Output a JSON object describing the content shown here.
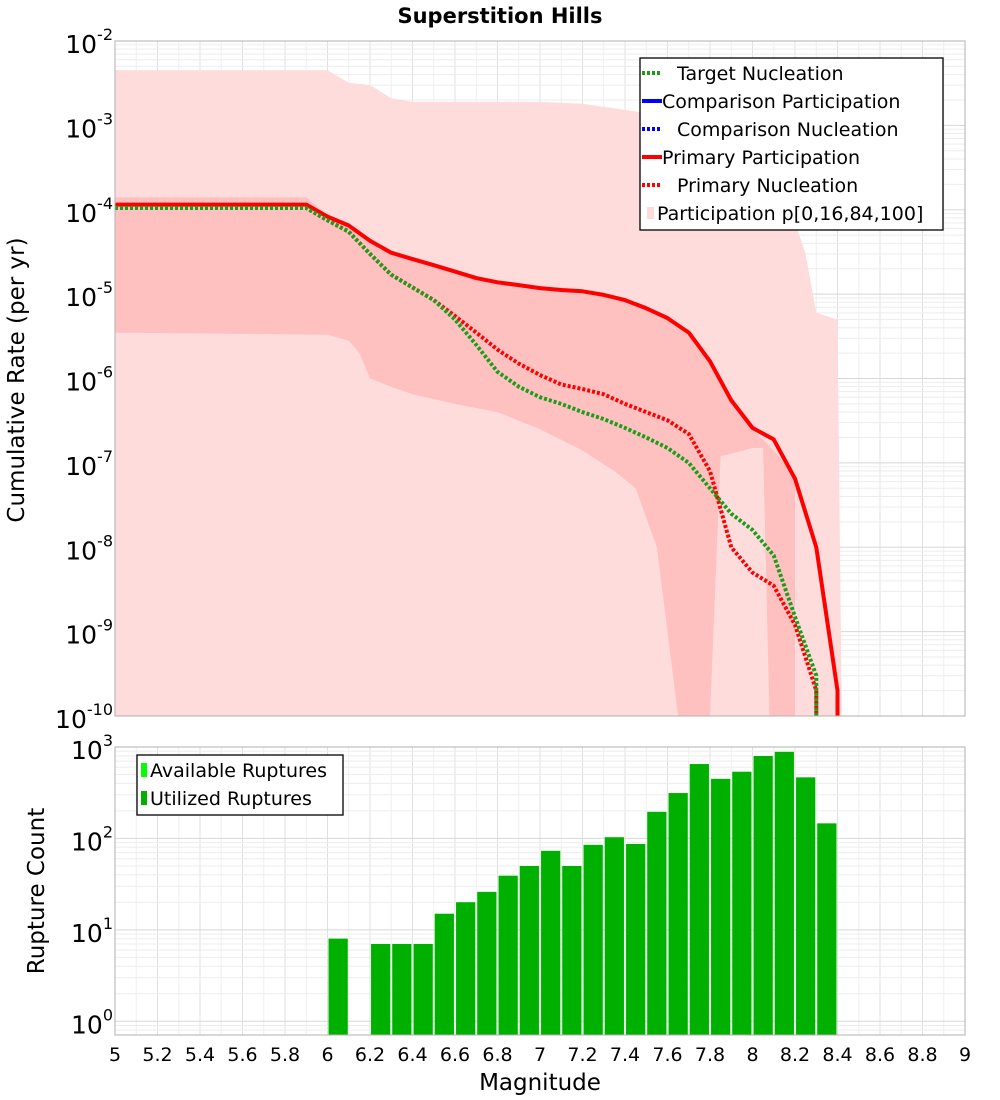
{
  "chart_data": [
    {
      "type": "line",
      "title": "Superstition Hills",
      "xlabel": "",
      "ylabel": "Cumulative Rate (per yr)",
      "xlim": [
        5,
        9
      ],
      "ylim_log10": [
        -10,
        -2
      ],
      "ytick_exponents": [
        "-2",
        "-3",
        "-4",
        "-5",
        "-6",
        "-7",
        "-8",
        "-9",
        "-10"
      ],
      "ytick_base": "10",
      "legend": {
        "position": "top-right",
        "entries": [
          {
            "label": "Target Nucleation",
            "color": "#1a9e1a",
            "style": "dotted"
          },
          {
            "label": "Comparison Participation",
            "color": "#0000ff",
            "style": "solid"
          },
          {
            "label": "Comparison Nucleation",
            "color": "#0000ff",
            "style": "dotted"
          },
          {
            "label": "Primary Participation",
            "color": "#ff0000",
            "style": "solid"
          },
          {
            "label": "Primary Nucleation",
            "color": "#ff0000",
            "style": "dotted"
          },
          {
            "label": "Participation p[0,16,84,100]",
            "color": "#ffdcdc",
            "style": "box"
          }
        ]
      },
      "bands": {
        "outer": {
          "name": "Participation p0-p100",
          "color": "#ffdcdc",
          "upper": [
            [
              5,
              0.0045
            ],
            [
              6,
              0.0045
            ],
            [
              6.1,
              0.0032
            ],
            [
              6.2,
              0.003
            ],
            [
              6.3,
              0.0021
            ],
            [
              6.4,
              0.0019
            ],
            [
              7.0,
              0.0019
            ],
            [
              7.2,
              0.0018
            ],
            [
              7.5,
              0.0014
            ],
            [
              7.6,
              0.001
            ],
            [
              7.7,
              0.0006
            ],
            [
              7.8,
              0.00035
            ],
            [
              7.9,
              0.0002
            ],
            [
              8.0,
              0.00012
            ],
            [
              8.1,
              9e-05
            ],
            [
              8.2,
              7e-05
            ],
            [
              8.25,
              3e-05
            ],
            [
              8.3,
              6e-06
            ],
            [
              8.4,
              5e-06
            ],
            [
              8.42,
              1e-10
            ]
          ],
          "lower": [
            [
              5,
              1e-10
            ],
            [
              8.42,
              1e-10
            ]
          ]
        },
        "inner": {
          "name": "Participation p16-p84",
          "color": "#ffc0c0",
          "upper": [
            [
              5,
              0.00014
            ],
            [
              5.9,
              0.00014
            ],
            [
              6.0,
              8.5e-05
            ],
            [
              6.1,
              6.5e-05
            ],
            [
              6.2,
              4e-05
            ],
            [
              6.3,
              3.1e-05
            ],
            [
              6.4,
              2.6e-05
            ],
            [
              6.5,
              2.2e-05
            ],
            [
              6.6,
              1.9e-05
            ],
            [
              6.7,
              1.6e-05
            ],
            [
              6.8,
              1.4e-05
            ],
            [
              7.0,
              1.2e-05
            ],
            [
              7.2,
              1.1e-05
            ],
            [
              7.4,
              8.5e-06
            ],
            [
              7.6,
              5.2e-06
            ],
            [
              7.7,
              3.5e-06
            ],
            [
              7.8,
              1.5e-06
            ],
            [
              7.9,
              6e-07
            ],
            [
              8.0,
              2.5e-07
            ],
            [
              8.1,
              1.4e-07
            ],
            [
              8.2,
              7e-08
            ]
          ],
          "lower": [
            [
              5,
              3.5e-06
            ],
            [
              6.0,
              3.3e-06
            ],
            [
              6.1,
              2.8e-06
            ],
            [
              6.15,
              2e-06
            ],
            [
              6.2,
              1e-06
            ],
            [
              6.3,
              8e-07
            ],
            [
              6.4,
              6.5e-07
            ],
            [
              6.6,
              5e-07
            ],
            [
              6.8,
              4e-07
            ],
            [
              7.0,
              2.5e-07
            ],
            [
              7.2,
              1.4e-07
            ],
            [
              7.35,
              8e-08
            ],
            [
              7.45,
              5e-08
            ],
            [
              7.55,
              1e-08
            ],
            [
              7.6,
              1e-09
            ],
            [
              7.65,
              1e-10
            ],
            [
              7.8,
              1e-10
            ],
            [
              7.85,
              1.2e-07
            ],
            [
              8.0,
              1.5e-07
            ],
            [
              8.05,
              1.5e-07
            ],
            [
              8.08,
              1e-10
            ],
            [
              8.2,
              1e-10
            ]
          ]
        }
      },
      "series": [
        {
          "name": "Primary Participation",
          "color": "#ff0000",
          "style": "solid",
          "x": [
            5.0,
            5.9,
            6.0,
            6.1,
            6.2,
            6.3,
            6.4,
            6.5,
            6.6,
            6.7,
            6.8,
            6.9,
            7.0,
            7.1,
            7.2,
            7.3,
            7.4,
            7.5,
            7.6,
            7.7,
            7.8,
            7.9,
            8.0,
            8.1,
            8.2,
            8.3,
            8.4,
            8.4
          ],
          "y": [
            0.000115,
            0.000115,
            8.3e-05,
            6.5e-05,
            4.3e-05,
            3.1e-05,
            2.6e-05,
            2.2e-05,
            1.85e-05,
            1.55e-05,
            1.38e-05,
            1.28e-05,
            1.18e-05,
            1.12e-05,
            1.08e-05,
            9.8e-06,
            8.5e-06,
            6.8e-06,
            5.2e-06,
            3.5e-06,
            1.6e-06,
            5.5e-07,
            2.6e-07,
            1.9e-07,
            6.5e-08,
            1e-08,
            2e-10,
            1e-10
          ]
        },
        {
          "name": "Primary Nucleation",
          "color": "#ff0000",
          "style": "dotted",
          "x": [
            5.0,
            5.9,
            6.0,
            6.1,
            6.2,
            6.3,
            6.4,
            6.5,
            6.6,
            6.7,
            6.8,
            6.9,
            7.0,
            7.1,
            7.2,
            7.3,
            7.4,
            7.5,
            7.6,
            7.7,
            7.8,
            7.9,
            8.0,
            8.1,
            8.2,
            8.3,
            8.3
          ],
          "y": [
            0.000105,
            0.000105,
            7.5e-05,
            5.5e-05,
            3e-05,
            1.7e-05,
            1.2e-05,
            8.5e-06,
            5.5e-06,
            3.5e-06,
            2.2e-06,
            1.5e-06,
            1.1e-06,
            8.5e-07,
            7.5e-07,
            6.5e-07,
            5e-07,
            4e-07,
            3.2e-07,
            2.2e-07,
            8e-08,
            1e-08,
            5e-09,
            3.5e-09,
            1.2e-09,
            2e-10,
            1e-10
          ]
        },
        {
          "name": "Target Nucleation",
          "color": "#1a9e1a",
          "style": "dotted",
          "x": [
            5.0,
            5.9,
            6.0,
            6.1,
            6.2,
            6.3,
            6.4,
            6.5,
            6.6,
            6.7,
            6.8,
            6.9,
            7.0,
            7.1,
            7.2,
            7.3,
            7.4,
            7.5,
            7.6,
            7.7,
            7.8,
            7.9,
            8.0,
            8.1,
            8.2,
            8.3,
            8.3
          ],
          "y": [
            0.000105,
            0.000105,
            7.5e-05,
            5.5e-05,
            3e-05,
            1.7e-05,
            1.2e-05,
            8.5e-06,
            5e-06,
            2.5e-06,
            1.2e-06,
            8e-07,
            6e-07,
            5e-07,
            4e-07,
            3.3e-07,
            2.6e-07,
            2e-07,
            1.5e-07,
            1e-07,
            5e-08,
            2.5e-08,
            1.6e-08,
            8e-09,
            1.5e-09,
            3e-10,
            1e-10
          ]
        }
      ]
    },
    {
      "type": "bar",
      "title": "",
      "xlabel": "Magnitude",
      "ylabel": "Rupture Count",
      "xlim": [
        5,
        9
      ],
      "ylim_log10": [
        -0.15,
        3
      ],
      "ytick_exponents": [
        "3",
        "2",
        "1",
        "0"
      ],
      "ytick_base": "10",
      "xticks": [
        "5",
        "5.2",
        "5.4",
        "5.6",
        "5.8",
        "6",
        "6.2",
        "6.4",
        "6.6",
        "6.8",
        "7",
        "7.2",
        "7.4",
        "7.6",
        "7.8",
        "8",
        "8.2",
        "8.4",
        "8.6",
        "8.8",
        "9"
      ],
      "legend": {
        "position": "top-left",
        "entries": [
          {
            "label": "Available Ruptures",
            "color": "#00ff00"
          },
          {
            "label": "Utilized Ruptures",
            "color": "#00b000"
          }
        ]
      },
      "bar_width": 0.09,
      "series": [
        {
          "name": "Available Ruptures",
          "color": "#00ff00",
          "x": [
            6.05,
            6.25,
            6.35,
            6.45,
            6.55,
            6.65,
            6.75,
            6.85,
            6.95,
            7.05,
            7.15,
            7.25,
            7.35,
            7.45,
            7.55,
            7.65,
            7.75,
            7.85,
            7.95,
            8.05,
            8.15,
            8.25,
            8.35
          ],
          "values": [
            8,
            7,
            7,
            7,
            15,
            20,
            26,
            39,
            50,
            73,
            50,
            85,
            103,
            87,
            195,
            313,
            650,
            448,
            536,
            798,
            884,
            465,
            146
          ]
        },
        {
          "name": "Utilized Ruptures",
          "color": "#00b000",
          "x": [
            6.05,
            6.25,
            6.35,
            6.45,
            6.55,
            6.65,
            6.75,
            6.85,
            6.95,
            7.05,
            7.15,
            7.25,
            7.35,
            7.45,
            7.55,
            7.65,
            7.75,
            7.85,
            7.95,
            8.05,
            8.15,
            8.25,
            8.35
          ],
          "values": [
            8,
            7,
            7,
            7,
            15,
            20,
            26,
            39,
            50,
            73,
            50,
            85,
            103,
            87,
            195,
            313,
            650,
            448,
            536,
            798,
            884,
            465,
            146
          ]
        }
      ]
    }
  ]
}
